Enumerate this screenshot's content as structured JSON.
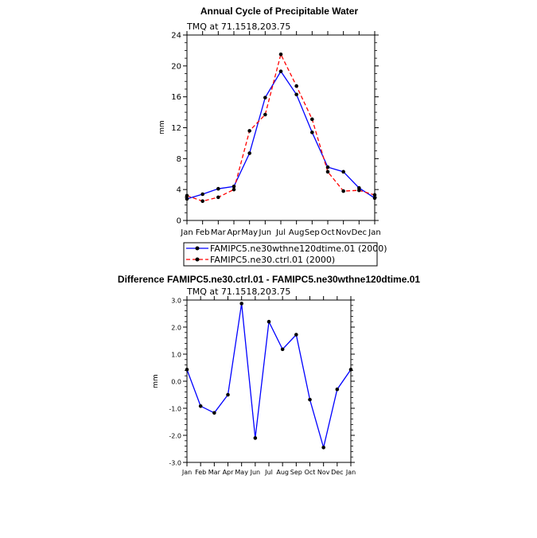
{
  "chart_data": [
    {
      "type": "line",
      "title": "Annual Cycle of Precipitable Water",
      "subtitle": "TMQ  at  71.1518,203.75",
      "xlabel": "",
      "ylabel": "mm",
      "categories": [
        "Jan",
        "Feb",
        "Mar",
        "Apr",
        "May",
        "Jun",
        "Jul",
        "Aug",
        "Sep",
        "Oct",
        "Nov",
        "Dec",
        "Jan"
      ],
      "ylim": [
        0,
        24
      ],
      "yticks": [
        0,
        4,
        8,
        12,
        16,
        20,
        24
      ],
      "ytick_labels": [
        "0",
        "4",
        "8",
        "12",
        "16",
        "20",
        "24"
      ],
      "series": [
        {
          "name": "FAMIPC5.ne30wthne120dtime.01 (2000)",
          "color": "#0000ff",
          "dash": "solid",
          "values": [
            2.8,
            3.4,
            4.1,
            4.4,
            8.7,
            15.9,
            19.3,
            16.3,
            11.4,
            6.9,
            6.3,
            4.2,
            2.9
          ]
        },
        {
          "name": "FAMIPC5.ne30.ctrl.01 (2000)",
          "color": "#ff0000",
          "dash": "dashed",
          "values": [
            3.2,
            2.5,
            3.0,
            4.0,
            11.6,
            13.7,
            21.5,
            17.4,
            13.1,
            6.3,
            3.8,
            3.9,
            3.3
          ]
        }
      ]
    },
    {
      "type": "line",
      "title": "Difference FAMIPC5.ne30.ctrl.01 - FAMIPC5.ne30wthne120dtime.01",
      "subtitle": "TMQ  at  71.1518,203.75",
      "xlabel": "",
      "ylabel": "mm",
      "categories": [
        "Jan",
        "Feb",
        "Mar",
        "Apr",
        "May",
        "Jun",
        "Jul",
        "Aug",
        "Sep",
        "Oct",
        "Nov",
        "Dec",
        "Jan"
      ],
      "ylim": [
        -3,
        3
      ],
      "yticks": [
        -3,
        -2,
        -1,
        0,
        1,
        2,
        3
      ],
      "ytick_labels": [
        "-3.0",
        "-2.0",
        "-1.0",
        "0.0",
        "1.0",
        "2.0",
        "3.0"
      ],
      "series": [
        {
          "name": "Difference",
          "color": "#0000ff",
          "dash": "solid",
          "values": [
            0.43,
            -0.92,
            -1.17,
            -0.5,
            2.87,
            -2.1,
            2.2,
            1.18,
            1.72,
            -0.68,
            -2.45,
            -0.3,
            0.43
          ]
        }
      ]
    }
  ]
}
